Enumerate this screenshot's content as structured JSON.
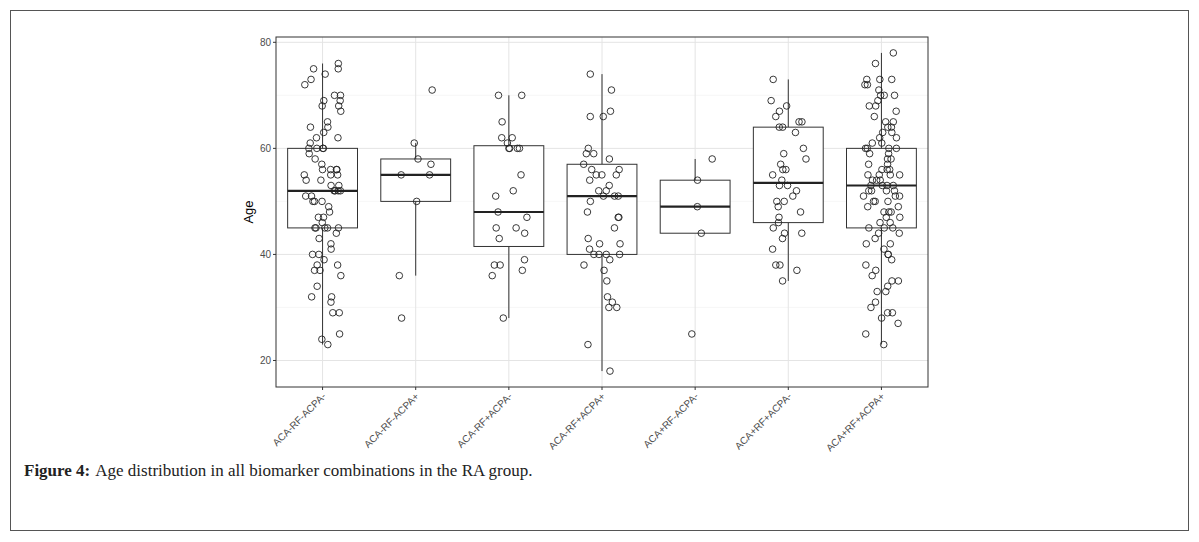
{
  "chart_data": {
    "type": "box",
    "figure_label": "Figure 4:",
    "title": "Age distribution in all biomarker combinations in the RA group.",
    "ylabel": "Age",
    "categories": [
      "ACA-RF-ACPA-",
      "ACA-RF-ACPA+",
      "ACA-RF+ACPA-",
      "ACA-RF+ACPA+",
      "ACA+RF-ACPA-",
      "ACA+RF+ACPA-",
      "ACA+RF+ACPA+"
    ],
    "ylim": [
      15,
      81
    ],
    "yticks": [
      20,
      40,
      60,
      80
    ],
    "grid": true,
    "marker": "circle",
    "boxes": [
      {
        "min": 23,
        "q1": 45,
        "median": 52,
        "q3": 60,
        "max": 76,
        "points": [
          76,
          75,
          75,
          74,
          73,
          72,
          70,
          70,
          69,
          69,
          68,
          68,
          67,
          65,
          64,
          64,
          63,
          62,
          62,
          61,
          60,
          60,
          60,
          60,
          59,
          58,
          57,
          56,
          56,
          56,
          56,
          55,
          55,
          55,
          54,
          54,
          53,
          53,
          52,
          52,
          52,
          52,
          51,
          51,
          50,
          50,
          50,
          49,
          48,
          47,
          47,
          46,
          45,
          45,
          45,
          45,
          45,
          44,
          43,
          42,
          41,
          40,
          40,
          39,
          38,
          38,
          37,
          37,
          36,
          34,
          32,
          32,
          31,
          29,
          29,
          25,
          24,
          23
        ]
      },
      {
        "min": 36,
        "q1": 50,
        "median": 55,
        "q3": 58,
        "max": 61,
        "points": [
          71,
          61,
          58,
          57,
          55,
          55,
          50,
          36,
          28
        ]
      },
      {
        "min": 28,
        "q1": 41.5,
        "median": 48,
        "q3": 60.5,
        "max": 70,
        "points": [
          70,
          70,
          65,
          62,
          62,
          61,
          60,
          60,
          60,
          60,
          55,
          52,
          51,
          48,
          47,
          45,
          45,
          44,
          43,
          39,
          38,
          38,
          37,
          36,
          28
        ]
      },
      {
        "min": 18,
        "q1": 40,
        "median": 51,
        "q3": 57,
        "max": 74,
        "points": [
          74,
          71,
          67,
          66,
          66,
          60,
          59,
          59,
          58,
          57,
          56,
          56,
          55,
          55,
          55,
          54,
          53,
          52,
          52,
          51,
          51,
          51,
          50,
          48,
          47,
          47,
          45,
          43,
          42,
          42,
          41,
          40,
          40,
          40,
          40,
          39,
          38,
          37,
          35,
          32,
          31,
          30,
          30,
          23,
          18
        ]
      },
      {
        "min": 44,
        "q1": 44,
        "median": 49,
        "q3": 54,
        "max": 58,
        "points": [
          58,
          54,
          49,
          44,
          25
        ]
      },
      {
        "min": 35,
        "q1": 46,
        "median": 53.5,
        "q3": 64,
        "max": 73,
        "points": [
          73,
          69,
          68,
          67,
          66,
          65,
          65,
          64,
          64,
          63,
          60,
          59,
          58,
          57,
          56,
          56,
          55,
          54,
          53,
          53,
          52,
          51,
          50,
          50,
          49,
          48,
          47,
          46,
          45,
          44,
          44,
          43,
          41,
          38,
          38,
          37,
          35
        ]
      },
      {
        "min": 23,
        "q1": 45,
        "median": 53,
        "q3": 60,
        "max": 78,
        "points": [
          78,
          76,
          73,
          73,
          73,
          72,
          72,
          71,
          70,
          70,
          70,
          69,
          68,
          68,
          67,
          66,
          65,
          65,
          64,
          64,
          63,
          63,
          62,
          62,
          61,
          61,
          60,
          60,
          60,
          60,
          59,
          59,
          58,
          58,
          57,
          57,
          56,
          56,
          56,
          55,
          55,
          55,
          55,
          54,
          54,
          54,
          53,
          53,
          53,
          53,
          52,
          52,
          52,
          52,
          51,
          51,
          51,
          50,
          50,
          50,
          49,
          49,
          48,
          48,
          48,
          47,
          47,
          46,
          46,
          45,
          45,
          45,
          44,
          44,
          43,
          42,
          42,
          41,
          40,
          40,
          39,
          38,
          37,
          36,
          35,
          35,
          34,
          33,
          33,
          31,
          30,
          29,
          29,
          28,
          27,
          25,
          23
        ]
      }
    ]
  }
}
